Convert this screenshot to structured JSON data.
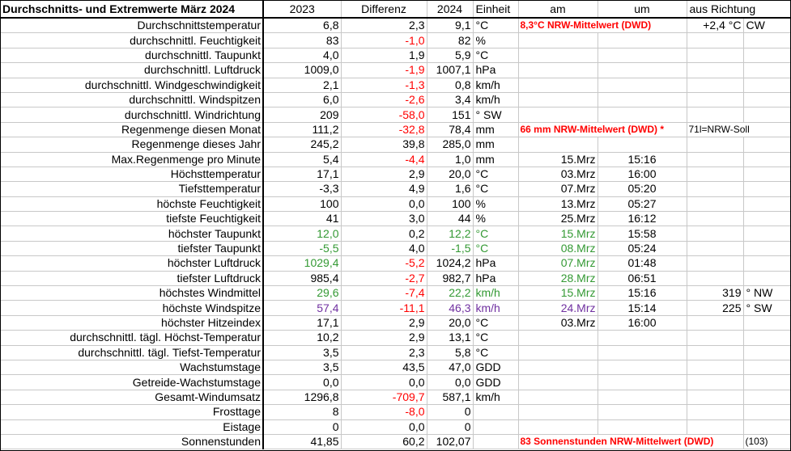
{
  "header": {
    "title": "Durchschnitts- und Extremwerte März 2024",
    "col_2023": "2023",
    "col_diff": "Differenz",
    "col_2024": "2024",
    "col_unit": "Einheit",
    "col_am": "am",
    "col_um": "um",
    "col_dir": "aus Richtung"
  },
  "rows": [
    {
      "label": "Durchschnittstemperatur",
      "v2023": "6,8",
      "diff": "2,3",
      "v2024": "9,1",
      "unit": "°C",
      "am": "",
      "um": "",
      "dirval": "+2,4 °C",
      "dirunit": "CW",
      "note": "8,3°C NRW-Mittelwert (DWD)"
    },
    {
      "label": "durchschnittl. Feuchtigkeit",
      "v2023": "83",
      "diff": "-1,0",
      "v2024": "82",
      "unit": "%"
    },
    {
      "label": "durchschnittl. Taupunkt",
      "v2023": "4,0",
      "diff": "1,9",
      "v2024": "5,9",
      "unit": "°C"
    },
    {
      "label": "durchschnittl. Luftdruck",
      "v2023": "1009,0",
      "diff": "-1,9",
      "v2024": "1007,1",
      "unit": "hPa"
    },
    {
      "label": "durchschnittl. Windgeschwindigkeit",
      "v2023": "2,1",
      "diff": "-1,3",
      "v2024": "0,8",
      "unit": "km/h"
    },
    {
      "label": "durchschnittl. Windspitzen",
      "v2023": "6,0",
      "diff": "-2,6",
      "v2024": "3,4",
      "unit": "km/h"
    },
    {
      "label": "durchschnittl. Windrichtung",
      "v2023": "209",
      "diff": "-58,0",
      "v2024": "151",
      "unit": "°  SW"
    },
    {
      "label": "Regenmenge diesen Monat",
      "v2023": "111,2",
      "diff": "-32,8",
      "v2024": "78,4",
      "unit": "mm",
      "note": "66 mm NRW-Mittelwert (DWD) *",
      "note2": "71l=NRW-Soll"
    },
    {
      "label": "Regenmenge dieses Jahr",
      "v2023": "245,2",
      "diff": "39,8",
      "v2024": "285,0",
      "unit": "mm"
    },
    {
      "label": "Max.Regenmenge pro Minute",
      "v2023": "5,4",
      "diff": "-4,4",
      "v2024": "1,0",
      "unit": "mm",
      "am": "15.Mrz",
      "um": "15:16"
    },
    {
      "label": "Höchsttemperatur",
      "v2023": "17,1",
      "diff": "2,9",
      "v2024": "20,0",
      "unit": "°C",
      "am": "03.Mrz",
      "um": "16:00"
    },
    {
      "label": "Tiefsttemperatur",
      "v2023": "-3,3",
      "diff": "4,9",
      "v2024": "1,6",
      "unit": "°C",
      "am": "07.Mrz",
      "um": "05:20"
    },
    {
      "label": "höchste Feuchtigkeit",
      "v2023": "100",
      "diff": "0,0",
      "v2024": "100",
      "unit": "%",
      "am": "13.Mrz",
      "um": "05:27"
    },
    {
      "label": "tiefste Feuchtigkeit",
      "v2023": "41",
      "diff": "3,0",
      "v2024": "44",
      "unit": "%",
      "am": "25.Mrz",
      "um": "16:12"
    },
    {
      "label": "höchster Taupunkt",
      "v2023": "12,0",
      "diff": "0,2",
      "v2024": "12,2",
      "unit": "°C",
      "am": "15.Mrz",
      "um": "15:58"
    },
    {
      "label": "tiefster Taupunkt",
      "v2023": "-5,5",
      "diff": "4,0",
      "v2024": "-1,5",
      "unit": "°C",
      "am": "08.Mrz",
      "um": "05:24"
    },
    {
      "label": "höchster Luftdruck",
      "v2023": "1029,4",
      "diff": "-5,2",
      "v2024": "1024,2",
      "unit": "hPa",
      "am": "07.Mrz",
      "um": "01:48"
    },
    {
      "label": "tiefster Luftdruck",
      "v2023": "985,4",
      "diff": "-2,7",
      "v2024": "982,7",
      "unit": "hPa",
      "am": "28.Mrz",
      "um": "06:51"
    },
    {
      "label": "höchstes Windmittel",
      "v2023": "29,6",
      "diff": "-7,4",
      "v2024": "22,2",
      "unit": "km/h",
      "am": "15.Mrz",
      "um": "15:16",
      "dirval": "319",
      "dirunit": "° NW"
    },
    {
      "label": "höchste Windspitze",
      "v2023": "57,4",
      "diff": "-11,1",
      "v2024": "46,3",
      "unit": "km/h",
      "am": "24.Mrz",
      "um": "15:14",
      "dirval": "225",
      "dirunit": "° SW"
    },
    {
      "label": "höchster Hitzeindex",
      "v2023": "17,1",
      "diff": "2,9",
      "v2024": "20,0",
      "unit": "°C",
      "am": "03.Mrz",
      "um": "16:00"
    },
    {
      "label": "durchschnittl. tägl. Höchst-Temperatur",
      "v2023": "10,2",
      "diff": "2,9",
      "v2024": "13,1",
      "unit": "°C"
    },
    {
      "label": "durchschnittl. tägl. Tiefst-Temperatur",
      "v2023": "3,5",
      "diff": "2,3",
      "v2024": "5,8",
      "unit": "°C"
    },
    {
      "label": "Wachstumstage",
      "v2023": "3,5",
      "diff": "43,5",
      "v2024": "47,0",
      "unit": "GDD"
    },
    {
      "label": "Getreide-Wachstumstage",
      "v2023": "0,0",
      "diff": "0,0",
      "v2024": "0,0",
      "unit": "GDD"
    },
    {
      "label": "Gesamt-Windumsatz",
      "v2023": "1296,8",
      "diff": "-709,7",
      "v2024": "587,1",
      "unit": "km/h"
    },
    {
      "label": "Frosttage",
      "v2023": "8",
      "diff": "-8,0",
      "v2024": "0",
      "unit": ""
    },
    {
      "label": "Eistage",
      "v2023": "0",
      "diff": "0,0",
      "v2024": "0",
      "unit": ""
    },
    {
      "label": "Sonnenstunden",
      "v2023": "41,85",
      "diff": "60,2",
      "v2024": "102,07",
      "unit": "",
      "note": "83 Sonnenstunden NRW-Mittelwert (DWD)",
      "note2": "(103)"
    }
  ],
  "colors": {
    "negative": "#ff0000",
    "dewpoint": "#339933",
    "gust": "#7030a0"
  }
}
